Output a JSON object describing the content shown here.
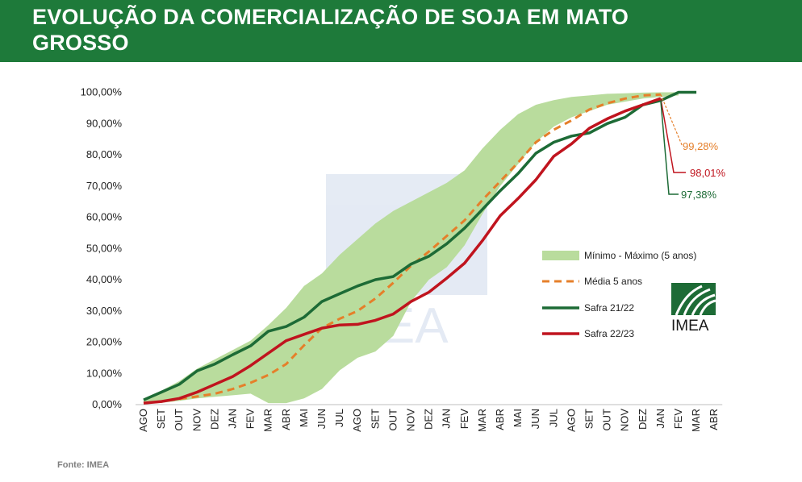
{
  "header": {
    "title": "EVOLUÇÃO DA COMERCIALIZAÇÃO DE SOJA EM MATO GROSSO"
  },
  "colors": {
    "header_bg": "#1e7a3a",
    "band": "#b9dc9d",
    "media": "#e57f2a",
    "safra_21_22": "#1d6b36",
    "safra_22_23": "#c0141e"
  },
  "chart_data": {
    "type": "line",
    "categories": [
      "AGO",
      "SET",
      "OUT",
      "NOV",
      "DEZ",
      "JAN",
      "FEV",
      "MAR",
      "ABR",
      "MAI",
      "JUN",
      "JUL",
      "AGO",
      "SET",
      "OUT",
      "NOV",
      "DEZ",
      "JAN",
      "FEV",
      "MAR",
      "ABR",
      "MAI",
      "JUN",
      "JUL",
      "AGO",
      "SET",
      "OUT",
      "NOV",
      "DEZ",
      "JAN",
      "FEV",
      "MAR",
      "ABR"
    ],
    "ylim": [
      0,
      100
    ],
    "yticks": [
      "0,00%",
      "10,00%",
      "20,00%",
      "30,00%",
      "40,00%",
      "50,00%",
      "60,00%",
      "70,00%",
      "80,00%",
      "90,00%",
      "100,00%"
    ],
    "band": {
      "name": "Mínimo - Máximo (5 anos)",
      "min": [
        0.3,
        0.6,
        1.2,
        2.0,
        2.5,
        3.0,
        3.5,
        0.5,
        0.5,
        2,
        5,
        11,
        15,
        17,
        22,
        33,
        40,
        44,
        51,
        61,
        70,
        77,
        84,
        89,
        92,
        94,
        96,
        97,
        98,
        98.5,
        99
      ],
      "max": [
        2.0,
        4.5,
        7.5,
        11.5,
        14.5,
        17.5,
        20.5,
        25.5,
        31,
        38,
        42,
        48,
        53,
        58,
        62,
        65,
        68,
        71,
        75,
        82,
        88,
        93,
        96,
        97.5,
        98.5,
        99,
        99.5,
        99.7,
        99.9,
        100,
        100
      ]
    },
    "series": [
      {
        "name": "Média 5 anos",
        "values": [
          0.5,
          1.0,
          1.8,
          2.6,
          3.5,
          5.0,
          7.0,
          9.5,
          13,
          19,
          24.5,
          27.5,
          30,
          34,
          39,
          44.5,
          49,
          54,
          59,
          65.5,
          71.5,
          77.5,
          84,
          88,
          91,
          94.5,
          96.5,
          98,
          99,
          99.28,
          null,
          null,
          null
        ]
      },
      {
        "name": "Safra 21/22",
        "values": [
          1.5,
          4,
          6.5,
          10.8,
          13,
          16,
          18.8,
          23.5,
          25,
          28,
          33,
          35.5,
          38,
          40,
          41,
          45,
          47.5,
          51.5,
          56.5,
          62.5,
          68.5,
          74,
          80.5,
          84,
          86,
          87,
          90,
          92,
          96,
          97.38,
          100,
          100,
          null
        ]
      },
      {
        "name": "Safra 22/23",
        "values": [
          0.5,
          1,
          2,
          4,
          6.5,
          9,
          12.5,
          16.5,
          20.5,
          22.5,
          24.5,
          25.5,
          25.7,
          27,
          29,
          33,
          36,
          40.5,
          45.3,
          52.5,
          60.5,
          66,
          72,
          79.5,
          83.5,
          88.5,
          91.5,
          94,
          96,
          98.01,
          null,
          null,
          null
        ]
      }
    ],
    "annotations": [
      "99,28%",
      "98,01%",
      "97,38%"
    ]
  },
  "legend": {
    "band": "Mínimo - Máximo (5 anos)",
    "media": "Média 5 anos",
    "s2122": "Safra 21/22",
    "s2223": "Safra 22/23"
  },
  "logo_text": "IMEA",
  "watermark_text": "IMEA",
  "source": "Fonte: IMEA"
}
